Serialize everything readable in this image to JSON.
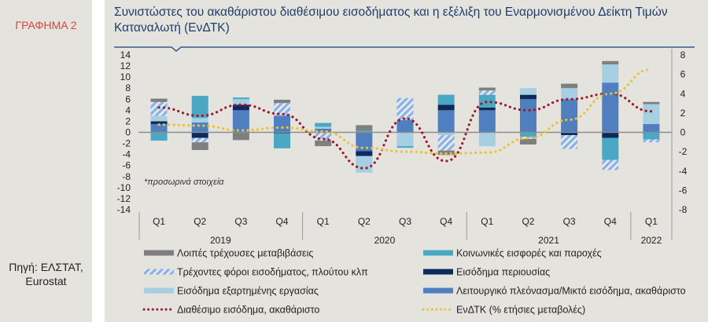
{
  "figure_label": "ΓΡΑΦΗΜΑ 2",
  "source": [
    "Πηγή: ΕΛΣΤΑΤ,",
    "Eurostat"
  ],
  "title_lines": [
    "Συνιστώστες του ακαθάριστου διαθέσιμου εισοδήματος και η εξέλιξη του Εναρμονισμένου Δείκτη Τιμών",
    "Καταναλωτή (ΕνΔΤΚ)"
  ],
  "note": "*προσωρινά στοιχεία",
  "chart_data": {
    "type": "bar",
    "subtype": "stacked bar with two line series (secondary axis)",
    "title": "Συνιστώστες του ακαθάριστου διαθέσιμου εισοδήματος και η εξέλιξη του Εναρμονισμένου Δείκτη Τιμών Καταναλωτή (ΕνΔΤΚ)",
    "categories": [
      "Q1",
      "Q2",
      "Q3",
      "Q4",
      "Q1",
      "Q2",
      "Q3",
      "Q4",
      "Q1",
      "Q2",
      "Q3",
      "Q4",
      "Q1"
    ],
    "category_groups": [
      {
        "label": "2019",
        "count": 4
      },
      {
        "label": "2020",
        "count": 4
      },
      {
        "label": "2021",
        "count": 4
      },
      {
        "label": "2022",
        "count": 1
      }
    ],
    "y_left": {
      "range": [
        -14,
        14
      ],
      "ticks": [
        14,
        12,
        10,
        8,
        6,
        4,
        2,
        0,
        -2,
        -4,
        -6,
        -8,
        -10,
        -12,
        -14
      ]
    },
    "y_right": {
      "range": [
        -8,
        8
      ],
      "ticks": [
        8,
        6,
        4,
        2,
        0,
        -2,
        -4,
        -6,
        -8
      ]
    },
    "grid": false,
    "legend_position": "bottom",
    "series": [
      {
        "name": "Λειτουργικό πλεόνασμα/Μικτό εισόδημα, ακαθάριστο",
        "key": "ops",
        "kind": "bar",
        "color": "#4f7fbf",
        "values": [
          1.5,
          1.8,
          4.0,
          3.0,
          0.5,
          -3.4,
          2.2,
          4.0,
          4.0,
          6.0,
          6.0,
          9.0,
          1.5
        ]
      },
      {
        "name": "Εισόδημα περιουσίας",
        "key": "prop",
        "kind": "bar",
        "color": "#0e2a5c",
        "values": [
          0.5,
          -1.0,
          1.0,
          -0.2,
          0.1,
          -0.9,
          0.0,
          1.0,
          0.5,
          0.8,
          -0.5,
          -1.0,
          0.0
        ]
      },
      {
        "name": "Εισόδημα εξαρτημένης εργασίας",
        "key": "wage",
        "kind": "bar",
        "color": "#a6cfe3",
        "values": [
          1.0,
          0.8,
          1.0,
          0.3,
          0.4,
          -3.0,
          -2.5,
          -0.5,
          -2.5,
          1.2,
          2.0,
          3.3,
          3.6
        ]
      },
      {
        "name": "Κοινωνικές εισφορές και παροχές",
        "key": "soc",
        "kind": "bar",
        "color": "#4aa8c4",
        "values": [
          -1.5,
          4.0,
          0.3,
          -2.7,
          0.7,
          0.3,
          -0.3,
          1.8,
          2.3,
          -0.8,
          0.0,
          -4.0,
          -1.3
        ]
      },
      {
        "name": "Τρέχοντες φόροι εισοδήματος, πλούτου κλπ",
        "key": "tax",
        "kind": "bar",
        "color": "#8fb2e0",
        "pattern": "hatched",
        "values": [
          2.5,
          -0.8,
          0.0,
          2.0,
          -1.5,
          0.0,
          4.0,
          -2.8,
          0.8,
          -0.4,
          -2.5,
          -1.8,
          -0.5
        ]
      },
      {
        "name": "Λοιπές τρέχουσες μεταβιβάσεις",
        "key": "oth",
        "kind": "bar",
        "color": "#7f7f7f",
        "values": [
          0.6,
          -1.4,
          -1.4,
          0.6,
          -1.0,
          1.0,
          0.0,
          -0.8,
          0.5,
          -1.0,
          0.8,
          0.6,
          0.4
        ]
      },
      {
        "name": "Διαθέσιμο εισόδημα, ακαθάριστο",
        "key": "gdi",
        "kind": "line",
        "axis": "left",
        "color": "#9b1b2a",
        "style": "dotted",
        "values": [
          4.5,
          3.0,
          5.0,
          3.3,
          -1.2,
          -6.5,
          2.5,
          -5.2,
          5.5,
          4.0,
          6.0,
          7.0,
          3.8
        ]
      },
      {
        "name": "ΕνΔΤΚ (% ετήσιες μεταβολές)",
        "key": "hicp",
        "kind": "line",
        "axis": "right",
        "color": "#e8c338",
        "style": "dotted",
        "values": [
          0.8,
          0.7,
          0.2,
          0.5,
          0.1,
          -1.6,
          -2.0,
          -2.2,
          -2.1,
          -0.6,
          1.3,
          4.0,
          6.5
        ]
      }
    ]
  }
}
